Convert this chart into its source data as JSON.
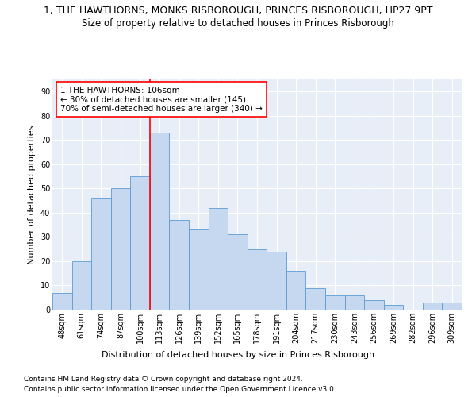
{
  "title": "1, THE HAWTHORNS, MONKS RISBOROUGH, PRINCES RISBOROUGH, HP27 9PT",
  "subtitle": "Size of property relative to detached houses in Princes Risborough",
  "xlabel": "Distribution of detached houses by size in Princes Risborough",
  "ylabel": "Number of detached properties",
  "categories": [
    "48sqm",
    "61sqm",
    "74sqm",
    "87sqm",
    "100sqm",
    "113sqm",
    "126sqm",
    "139sqm",
    "152sqm",
    "165sqm",
    "178sqm",
    "191sqm",
    "204sqm",
    "217sqm",
    "230sqm",
    "243sqm",
    "256sqm",
    "269sqm",
    "282sqm",
    "296sqm",
    "309sqm"
  ],
  "values": [
    7,
    20,
    46,
    50,
    55,
    73,
    37,
    33,
    42,
    31,
    25,
    24,
    16,
    9,
    6,
    6,
    4,
    2,
    0,
    3,
    3
  ],
  "bar_color": "#c5d8f0",
  "bar_edge_color": "#5b9bd5",
  "vline_color": "red",
  "annotation_text": "1 THE HAWTHORNS: 106sqm\n← 30% of detached houses are smaller (145)\n70% of semi-detached houses are larger (340) →",
  "annotation_box_color": "white",
  "annotation_box_edge": "red",
  "ylim": [
    0,
    95
  ],
  "yticks": [
    0,
    10,
    20,
    30,
    40,
    50,
    60,
    70,
    80,
    90
  ],
  "plot_background": "#e8eef7",
  "footer1": "Contains HM Land Registry data © Crown copyright and database right 2024.",
  "footer2": "Contains public sector information licensed under the Open Government Licence v3.0.",
  "title_fontsize": 9,
  "subtitle_fontsize": 8.5,
  "axis_label_fontsize": 8,
  "tick_fontsize": 7,
  "annotation_fontsize": 7.5,
  "footer_fontsize": 6.5
}
